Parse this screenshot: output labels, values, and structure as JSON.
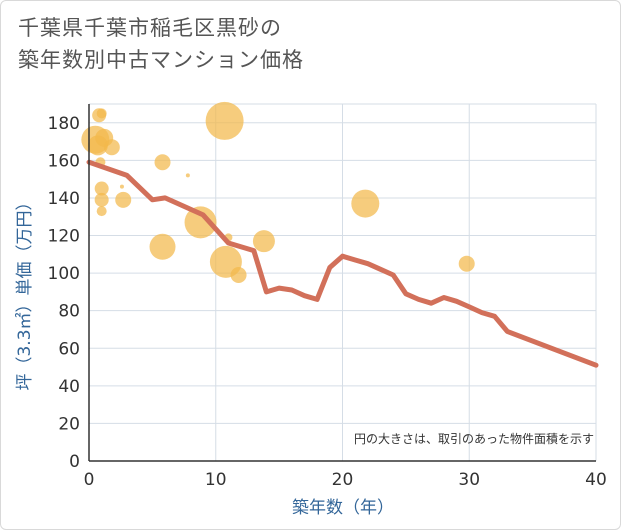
{
  "title": {
    "line1": "千葉県千葉市稲毛区黒砂の",
    "line2": "築年数別中古マンション価格"
  },
  "chart_data": {
    "type": "scatter",
    "xlabel": "築年数（年）",
    "ylabel": "坪（3.3㎡）単価（万円）",
    "xlim": [
      0,
      40
    ],
    "ylim": [
      0,
      190
    ],
    "xticks": [
      0,
      10,
      20,
      30,
      40
    ],
    "yticks": [
      0,
      20,
      40,
      60,
      80,
      100,
      120,
      140,
      160,
      180
    ],
    "grid": true,
    "note": "円の大きさは、取引のあった物件面積を示す",
    "colors": {
      "bubble": "#f2b84b",
      "line": "#d2705a",
      "grid": "#d5dde6",
      "axis_text": "#336699"
    },
    "bubbles": [
      {
        "x": 0.5,
        "y": 171,
        "size": 14
      },
      {
        "x": 0.7,
        "y": 168,
        "size": 10
      },
      {
        "x": 0.8,
        "y": 184,
        "size": 7
      },
      {
        "x": 0.9,
        "y": 159,
        "size": 5
      },
      {
        "x": 1.0,
        "y": 185,
        "size": 5
      },
      {
        "x": 1.0,
        "y": 145,
        "size": 7
      },
      {
        "x": 1.0,
        "y": 139,
        "size": 7
      },
      {
        "x": 1.0,
        "y": 133,
        "size": 5
      },
      {
        "x": 1.2,
        "y": 172,
        "size": 9
      },
      {
        "x": 1.8,
        "y": 167,
        "size": 8
      },
      {
        "x": 2.6,
        "y": 146,
        "size": 2
      },
      {
        "x": 2.7,
        "y": 139,
        "size": 8
      },
      {
        "x": 5.8,
        "y": 159,
        "size": 8
      },
      {
        "x": 5.8,
        "y": 114,
        "size": 13
      },
      {
        "x": 7.8,
        "y": 152,
        "size": 2
      },
      {
        "x": 8.8,
        "y": 127,
        "size": 16
      },
      {
        "x": 10.7,
        "y": 181,
        "size": 19
      },
      {
        "x": 10.8,
        "y": 106,
        "size": 16
      },
      {
        "x": 11.0,
        "y": 119,
        "size": 4
      },
      {
        "x": 11.8,
        "y": 99,
        "size": 8
      },
      {
        "x": 13.8,
        "y": 117,
        "size": 11
      },
      {
        "x": 21.8,
        "y": 137,
        "size": 14
      },
      {
        "x": 29.8,
        "y": 105,
        "size": 8
      }
    ],
    "trend_line": {
      "x": [
        0,
        3,
        5,
        6,
        9,
        11,
        13,
        14,
        15,
        16,
        17,
        18,
        19,
        20,
        21,
        22,
        23,
        24,
        25,
        26,
        27,
        28,
        29,
        30,
        31,
        32,
        33,
        40
      ],
      "y": [
        159,
        152,
        139,
        140,
        131,
        116,
        112,
        90,
        92,
        91,
        88,
        86,
        103,
        109,
        107,
        105,
        102,
        99,
        89,
        86,
        84,
        87,
        85,
        82,
        79,
        77,
        69,
        51
      ]
    }
  }
}
